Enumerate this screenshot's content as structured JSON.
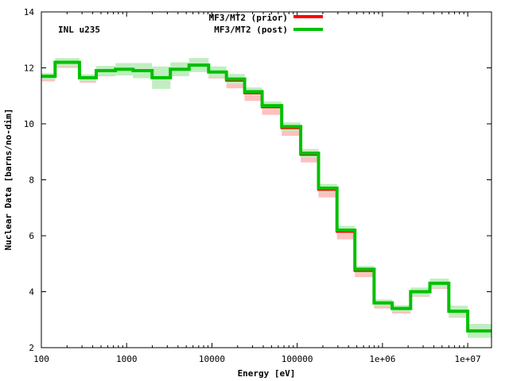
{
  "chart_data": {
    "type": "line",
    "step": true,
    "xscale": "log",
    "xlabel": "Energy [eV]",
    "ylabel": "Nuclear Data [barns/no-dim]",
    "annotation": "INL u235",
    "xlim": [
      100,
      19000000
    ],
    "ylim": [
      2,
      14
    ],
    "yticks": [
      2,
      4,
      6,
      8,
      10,
      12,
      14
    ],
    "xticks": [
      100,
      1000,
      10000,
      100000,
      1000000,
      10000000
    ],
    "xtick_labels": [
      "100",
      "1000",
      "10000",
      "100000",
      "1e+06",
      "1e+07"
    ],
    "legend_position": "top-center",
    "bin_edges": [
      86,
      145,
      280,
      440,
      740,
      1190,
      1990,
      3260,
      5400,
      9150,
      14800,
      24200,
      38800,
      65800,
      110000,
      178000,
      293000,
      475000,
      798000,
      1300000,
      2140000,
      3600000,
      6000000,
      10000000,
      19000000
    ],
    "series": [
      {
        "name": "MF3/MT2 (prior)",
        "color": "#ff0000",
        "band_color": "#ffc0c0",
        "values": [
          11.7,
          12.2,
          11.65,
          11.9,
          11.95,
          11.9,
          11.65,
          11.95,
          12.1,
          11.85,
          11.55,
          11.1,
          10.6,
          9.85,
          8.9,
          7.65,
          6.15,
          4.75,
          3.6,
          3.4,
          4.0,
          4.3,
          3.3,
          2.6
        ],
        "uncertainty": [
          0.1,
          0.12,
          0.1,
          0.12,
          0.12,
          0.15,
          0.2,
          0.15,
          0.15,
          0.15,
          0.2,
          0.2,
          0.2,
          0.2,
          0.2,
          0.2,
          0.2,
          0.15,
          0.12,
          0.1,
          0.1,
          0.12,
          0.15,
          0.15
        ]
      },
      {
        "name": "MF3/MT2 (post)",
        "color": "#00c000",
        "band_color": "#c0eec0",
        "values": [
          11.7,
          12.2,
          11.65,
          11.9,
          11.95,
          11.9,
          11.65,
          11.95,
          12.1,
          11.85,
          11.6,
          11.15,
          10.65,
          9.9,
          8.95,
          7.7,
          6.2,
          4.8,
          3.6,
          3.4,
          4.0,
          4.3,
          3.3,
          2.6
        ],
        "uncertainty": [
          0.12,
          0.15,
          0.12,
          0.17,
          0.22,
          0.27,
          0.4,
          0.25,
          0.25,
          0.2,
          0.18,
          0.15,
          0.15,
          0.15,
          0.15,
          0.15,
          0.15,
          0.12,
          0.12,
          0.12,
          0.15,
          0.17,
          0.2,
          0.25
        ]
      }
    ]
  }
}
